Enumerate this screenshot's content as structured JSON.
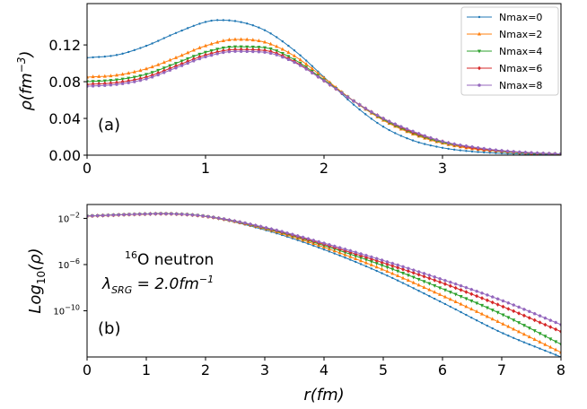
{
  "chart_data": [
    {
      "type": "line",
      "panel_label": "(a)",
      "ylabel": "ρ(fm⁻³)",
      "ylabel_parts": {
        "base": "ρ(fm",
        "sup": "−3",
        "tail": ")"
      },
      "xlabel": "",
      "xlim": [
        0,
        4
      ],
      "ylim": [
        0,
        0.165
      ],
      "xticks": [
        0,
        1,
        2,
        3
      ],
      "yticks": [
        0.0,
        0.04,
        0.08,
        0.12
      ],
      "ytick_labels": [
        "0.00",
        "0.04",
        "0.08",
        "0.12"
      ],
      "legend": {
        "placement": "top-right",
        "entries": [
          "Nmax=0",
          "Nmax=2",
          "Nmax=4",
          "Nmax=6",
          "Nmax=8"
        ]
      },
      "series": [
        {
          "name": "Nmax=0",
          "color": "#1f77b4",
          "marker": "point",
          "x": [
            0,
            0.25,
            0.5,
            0.75,
            1.0,
            1.1,
            1.25,
            1.5,
            1.75,
            2.0,
            2.25,
            2.5,
            2.75,
            3.0,
            3.25,
            3.5,
            3.75,
            4.0
          ],
          "values": [
            0.106,
            0.109,
            0.119,
            0.133,
            0.145,
            0.147,
            0.146,
            0.136,
            0.114,
            0.085,
            0.055,
            0.031,
            0.016,
            0.008,
            0.004,
            0.002,
            0.001,
            0.0005
          ]
        },
        {
          "name": "Nmax=2",
          "color": "#ff7f0e",
          "marker": "triangle-up",
          "x": [
            0,
            0.25,
            0.5,
            0.75,
            1.0,
            1.25,
            1.5,
            1.75,
            2.0,
            2.25,
            2.5,
            2.75,
            3.0,
            3.25,
            3.5,
            3.75,
            4.0
          ],
          "values": [
            0.085,
            0.087,
            0.094,
            0.106,
            0.119,
            0.126,
            0.123,
            0.108,
            0.084,
            0.059,
            0.038,
            0.023,
            0.013,
            0.007,
            0.004,
            0.002,
            0.001
          ]
        },
        {
          "name": "Nmax=4",
          "color": "#2ca02c",
          "marker": "triangle-down",
          "x": [
            0,
            0.25,
            0.5,
            0.75,
            1.0,
            1.25,
            1.5,
            1.75,
            2.0,
            2.25,
            2.5,
            2.75,
            3.0,
            3.25,
            3.5,
            3.75,
            4.0
          ],
          "values": [
            0.08,
            0.082,
            0.088,
            0.1,
            0.112,
            0.118,
            0.117,
            0.104,
            0.082,
            0.059,
            0.039,
            0.024,
            0.014,
            0.008,
            0.004,
            0.002,
            0.0012
          ]
        },
        {
          "name": "Nmax=6",
          "color": "#d62728",
          "marker": "diamond",
          "x": [
            0,
            0.25,
            0.5,
            0.75,
            1.0,
            1.25,
            1.5,
            1.75,
            2.0,
            2.25,
            2.5,
            2.75,
            3.0,
            3.25,
            3.5,
            3.75,
            4.0
          ],
          "values": [
            0.077,
            0.079,
            0.085,
            0.097,
            0.109,
            0.115,
            0.114,
            0.102,
            0.081,
            0.059,
            0.04,
            0.025,
            0.015,
            0.008,
            0.0045,
            0.0025,
            0.0013
          ]
        },
        {
          "name": "Nmax=8",
          "color": "#9467bd",
          "marker": "pentagon",
          "x": [
            0,
            0.25,
            0.5,
            0.75,
            1.0,
            1.25,
            1.5,
            1.75,
            2.0,
            2.25,
            2.5,
            2.75,
            3.0,
            3.25,
            3.5,
            3.75,
            4.0
          ],
          "values": [
            0.075,
            0.077,
            0.083,
            0.095,
            0.107,
            0.113,
            0.112,
            0.101,
            0.081,
            0.059,
            0.04,
            0.026,
            0.015,
            0.009,
            0.005,
            0.0027,
            0.0014
          ]
        }
      ]
    },
    {
      "type": "line",
      "panel_label": "(b)",
      "ylabel": "Log10(ρ)",
      "ylabel_parts": {
        "base": "Log",
        "sub": "10",
        "tail": "(ρ)"
      },
      "xlabel": "r(fm)",
      "xlim": [
        0,
        8
      ],
      "ylim": [
        -14,
        -0.8
      ],
      "ylim_note": "log10 of density",
      "xticks": [
        0,
        1,
        2,
        3,
        4,
        5,
        6,
        7,
        8
      ],
      "yticks": [
        -2,
        -6,
        -10
      ],
      "annotation": {
        "nucleus": "O neutron",
        "mass_number": "16",
        "lambda_text": "λ",
        "lambda_sub": "SRG",
        "lambda_value": " = 2.0fm",
        "lambda_exp": "−1"
      },
      "series": [
        {
          "name": "Nmax=0",
          "color": "#1f77b4",
          "x": [
            0,
            1,
            1.25,
            2,
            3,
            4,
            5,
            6,
            7,
            8
          ],
          "values": [
            -1.8,
            -1.62,
            -1.6,
            -1.83,
            -3.0,
            -4.7,
            -6.8,
            -9.3,
            -11.9,
            -14.0
          ]
        },
        {
          "name": "Nmax=2",
          "color": "#ff7f0e",
          "x": [
            0,
            1,
            1.25,
            2,
            3,
            4,
            5,
            6,
            7,
            8
          ],
          "values": [
            -1.8,
            -1.62,
            -1.6,
            -1.83,
            -2.9,
            -4.5,
            -6.45,
            -8.7,
            -11.1,
            -13.6
          ]
        },
        {
          "name": "Nmax=4",
          "color": "#2ca02c",
          "x": [
            0,
            1,
            1.25,
            2,
            3,
            4,
            5,
            6,
            7,
            8
          ],
          "values": [
            -1.8,
            -1.62,
            -1.6,
            -1.82,
            -2.85,
            -4.35,
            -6.1,
            -8.1,
            -10.3,
            -12.9
          ]
        },
        {
          "name": "Nmax=6",
          "color": "#d62728",
          "x": [
            0,
            1,
            1.25,
            2,
            3,
            4,
            5,
            6,
            7,
            8
          ],
          "values": [
            -1.8,
            -1.62,
            -1.6,
            -1.82,
            -2.8,
            -4.25,
            -5.85,
            -7.6,
            -9.6,
            -11.8
          ]
        },
        {
          "name": "Nmax=8",
          "color": "#9467bd",
          "x": [
            0,
            1,
            1.25,
            2,
            3,
            4,
            5,
            6,
            7,
            8
          ],
          "values": [
            -1.8,
            -1.62,
            -1.6,
            -1.82,
            -2.78,
            -4.15,
            -5.65,
            -7.3,
            -9.1,
            -11.2
          ]
        }
      ]
    }
  ]
}
